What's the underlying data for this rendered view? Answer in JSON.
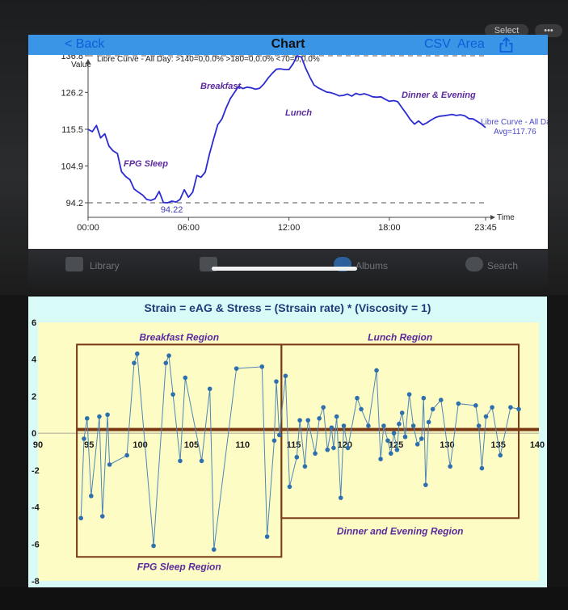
{
  "app": {
    "back_label": "< Back",
    "title": "Chart",
    "csv_label": "CSV",
    "area_label": "Area",
    "select_label": "Select"
  },
  "dock": {
    "library": "Library",
    "albums": "Albums",
    "search": "Search"
  },
  "chart_data": [
    {
      "type": "line",
      "title": "Libre Curve - All Day: >140=0,0.0%  >180=0,0.0%  <70=0,0.0%",
      "xlabel": "Time",
      "ylabel": "Value",
      "x_ticks": [
        "00:00",
        "06:00",
        "12:00",
        "18:00",
        "23:45"
      ],
      "y_ticks": [
        94.2,
        104.9,
        115.5,
        126.2,
        136.8
      ],
      "ylim": [
        92.0,
        138.8
      ],
      "xlim_hours": [
        0,
        23.75
      ],
      "ref_lines": [
        136.8,
        94.2
      ],
      "peak_label": "136.81",
      "trough_label": "94.22",
      "series_label": "Libre Curve - All Day",
      "avg_label": "Avg=117.76",
      "annotations": [
        "FPG Sleep",
        "Breakfast",
        "Lunch",
        "Dinner & Evening"
      ],
      "x": [
        0,
        0.25,
        0.5,
        0.75,
        1,
        1.25,
        1.5,
        1.75,
        2,
        2.25,
        2.5,
        2.75,
        3,
        3.25,
        3.5,
        3.75,
        4,
        4.25,
        4.5,
        4.75,
        5,
        5.25,
        5.5,
        5.75,
        6,
        6.25,
        6.5,
        6.75,
        7,
        7.25,
        7.5,
        7.75,
        8,
        8.25,
        8.5,
        8.75,
        9,
        9.25,
        9.5,
        9.75,
        10,
        10.25,
        10.5,
        10.75,
        11,
        11.25,
        11.5,
        11.75,
        12,
        12.25,
        12.5,
        12.75,
        13,
        13.25,
        13.5,
        13.75,
        14,
        14.25,
        14.5,
        14.75,
        15,
        15.25,
        15.5,
        15.75,
        16,
        16.25,
        16.5,
        16.75,
        17,
        17.25,
        17.5,
        17.75,
        18,
        18.25,
        18.5,
        18.75,
        19,
        19.25,
        19.5,
        19.75,
        20,
        20.25,
        20.5,
        20.75,
        21,
        21.25,
        21.5,
        21.75,
        22,
        22.25,
        22.5,
        22.75,
        23,
        23.25,
        23.5,
        23.75
      ],
      "values": [
        115.5,
        114.8,
        116.6,
        113.0,
        114.2,
        110.6,
        109.2,
        108.5,
        103.2,
        101.8,
        100.9,
        98.2,
        97.3,
        96.5,
        95.2,
        94.9,
        95.4,
        97.5,
        94.3,
        94.2,
        94.7,
        94.4,
        95.2,
        98.0,
        95.8,
        97.3,
        102.1,
        101.6,
        103.1,
        108.3,
        112.7,
        116.8,
        118.5,
        121.7,
        124.4,
        126.2,
        128.0,
        127.3,
        127.7,
        127.5,
        127.1,
        127.4,
        128.6,
        130.3,
        131.7,
        132.9,
        133.0,
        132.8,
        132.8,
        134.5,
        136.8,
        136.4,
        133.2,
        130.6,
        128.3,
        127.5,
        126.9,
        126.3,
        126.1,
        125.7,
        125.2,
        125.3,
        125.7,
        125.1,
        125.9,
        125.5,
        125.8,
        125.4,
        124.9,
        124.8,
        124.9,
        124.2,
        123.6,
        123.8,
        123.5,
        121.8,
        120.1,
        118.3,
        117.0,
        117.9,
        116.8,
        117.4,
        118.2,
        118.9,
        119.3,
        119.4,
        119.6,
        119.8,
        119.5,
        119.7,
        119.4,
        118.6,
        118.5,
        117.8,
        117.0,
        116.0
      ]
    },
    {
      "type": "scatter",
      "title": "Strain = eAG & Stress = (Strsain rate) * (Viscosity = 1)",
      "x_ticks": [
        90,
        95,
        100,
        105,
        110,
        115,
        120,
        125,
        130,
        135,
        140
      ],
      "y_ticks": [
        6,
        4,
        2,
        0,
        -2,
        -4,
        -6,
        -8
      ],
      "xlim": [
        90,
        140
      ],
      "ylim": [
        -8,
        6
      ],
      "ref_line_y": 0.2,
      "regions": [
        {
          "label": "Breakfast Region",
          "x0": 93.8,
          "x1": 113.8,
          "y0": 0.2,
          "y1": 4.8
        },
        {
          "label": "Lunch Region",
          "x0": 113.8,
          "x1": 137.0,
          "y0": 0.2,
          "y1": 4.8
        },
        {
          "label": "FPG Sleep Region",
          "x0": 93.8,
          "x1": 113.8,
          "y0": -6.7,
          "y1": 0.2
        },
        {
          "label": "Dinner and Evening Region",
          "x0": 113.8,
          "x1": 137.0,
          "y0": -4.6,
          "y1": 0.2
        }
      ],
      "points": [
        [
          94.2,
          -4.6
        ],
        [
          94.5,
          -0.3
        ],
        [
          94.8,
          0.8
        ],
        [
          95.2,
          -3.4
        ],
        [
          96.0,
          0.9
        ],
        [
          96.3,
          -4.5
        ],
        [
          96.8,
          1.0
        ],
        [
          97.0,
          -1.7
        ],
        [
          98.7,
          -1.2
        ],
        [
          99.4,
          3.8
        ],
        [
          99.7,
          4.3
        ],
        [
          101.3,
          -6.1
        ],
        [
          102.5,
          3.8
        ],
        [
          102.8,
          4.2
        ],
        [
          103.2,
          2.1
        ],
        [
          103.9,
          -1.5
        ],
        [
          104.4,
          3.0
        ],
        [
          106.0,
          -1.5
        ],
        [
          106.8,
          2.4
        ],
        [
          107.2,
          -6.3
        ],
        [
          109.4,
          3.5
        ],
        [
          111.9,
          3.6
        ],
        [
          112.4,
          -5.6
        ],
        [
          113.1,
          -0.4
        ],
        [
          113.3,
          2.8
        ],
        [
          113.6,
          -0.1
        ],
        [
          114.2,
          3.1
        ],
        [
          114.6,
          -2.9
        ],
        [
          115.3,
          -1.3
        ],
        [
          115.6,
          0.7
        ],
        [
          116.1,
          -1.8
        ],
        [
          116.4,
          0.7
        ],
        [
          117.1,
          -1.1
        ],
        [
          117.5,
          0.8
        ],
        [
          117.9,
          1.4
        ],
        [
          118.3,
          -0.9
        ],
        [
          118.7,
          0.3
        ],
        [
          118.9,
          -0.8
        ],
        [
          119.2,
          0.9
        ],
        [
          119.6,
          -3.5
        ],
        [
          119.9,
          0.4
        ],
        [
          120.3,
          -0.8
        ],
        [
          121.2,
          1.9
        ],
        [
          121.6,
          1.3
        ],
        [
          122.3,
          0.4
        ],
        [
          123.1,
          3.4
        ],
        [
          123.5,
          -1.4
        ],
        [
          123.8,
          0.4
        ],
        [
          124.2,
          -0.4
        ],
        [
          124.5,
          -1.1
        ],
        [
          124.8,
          0.0
        ],
        [
          125.1,
          -0.9
        ],
        [
          125.3,
          0.5
        ],
        [
          125.6,
          1.1
        ],
        [
          125.9,
          -0.2
        ],
        [
          126.3,
          2.1
        ],
        [
          126.7,
          0.4
        ],
        [
          127.1,
          -0.6
        ],
        [
          127.5,
          -0.3
        ],
        [
          127.7,
          1.9
        ],
        [
          127.9,
          -2.8
        ],
        [
          128.2,
          0.6
        ],
        [
          128.6,
          1.3
        ],
        [
          129.4,
          1.8
        ],
        [
          130.3,
          -1.8
        ],
        [
          131.1,
          1.6
        ],
        [
          132.8,
          1.5
        ],
        [
          133.1,
          0.4
        ],
        [
          133.4,
          -1.9
        ],
        [
          133.8,
          0.9
        ],
        [
          134.4,
          1.4
        ],
        [
          135.2,
          -1.2
        ],
        [
          136.2,
          1.4
        ],
        [
          137.0,
          1.3
        ]
      ]
    }
  ]
}
